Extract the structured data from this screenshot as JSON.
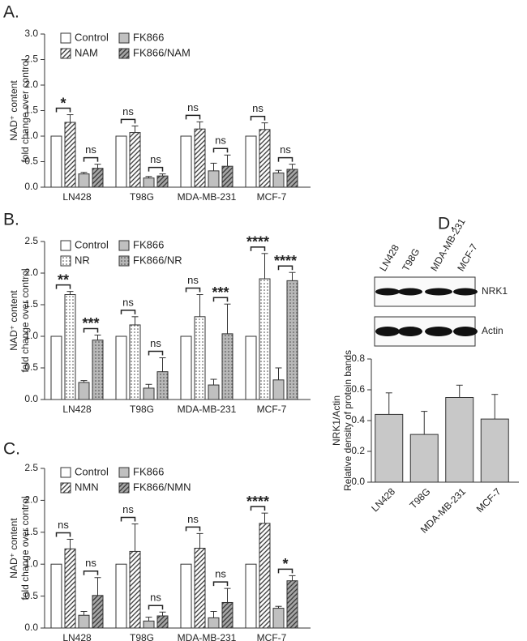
{
  "chart_data": [
    {
      "type": "bar",
      "panel": "A.",
      "ylabel": [
        "NAD⁺ content",
        "fold change  over control"
      ],
      "categories": [
        "LN428",
        "T98G",
        "MDA-MB-231",
        "MCF-7"
      ],
      "series": [
        {
          "name": "Control",
          "color": "#ffffff",
          "pattern": "none",
          "values": [
            1.0,
            1.0,
            1.0,
            1.0
          ],
          "errors": [
            null,
            null,
            null,
            null
          ]
        },
        {
          "name": "NAM",
          "color": "#ffffff",
          "pattern": "hatch",
          "values": [
            1.27,
            1.07,
            1.14,
            1.13
          ],
          "errors": [
            0.15,
            0.13,
            0.14,
            0.13
          ]
        },
        {
          "name": "FK866",
          "color": "#c0c0c0",
          "pattern": "none",
          "values": [
            0.26,
            0.18,
            0.32,
            0.28
          ],
          "errors": [
            0.03,
            0.03,
            0.15,
            0.05
          ]
        },
        {
          "name": "FK866/NAM",
          "color": "#a8a8a8",
          "pattern": "hatch",
          "values": [
            0.37,
            0.22,
            0.41,
            0.35
          ],
          "errors": [
            0.08,
            0.04,
            0.22,
            0.1
          ]
        }
      ],
      "significance": [
        [
          "*",
          "ns"
        ],
        [
          "ns",
          "ns"
        ],
        [
          "ns",
          "ns"
        ],
        [
          "ns",
          "ns"
        ]
      ],
      "ylim": [
        0,
        3
      ],
      "yticks": [
        {
          "value": 0,
          "label": "0.0"
        },
        0.5,
        {
          "value": 1,
          "label": "1.0"
        },
        1.5,
        {
          "value": 2,
          "label": "2.0"
        },
        2.5,
        {
          "value": 3,
          "label": "3.0"
        }
      ]
    },
    {
      "type": "bar",
      "panel": "B.",
      "ylabel": [
        "NAD⁺ content",
        "fold change  over control"
      ],
      "categories": [
        "LN428",
        "T98G",
        "MDA-MB-231",
        "MCF-7"
      ],
      "series": [
        {
          "name": "Control",
          "color": "#ffffff",
          "pattern": "none",
          "values": [
            1.0,
            1.0,
            1.0,
            1.0
          ],
          "errors": [
            null,
            null,
            null,
            null
          ]
        },
        {
          "name": "NR",
          "color": "#ffffff",
          "pattern": "dots",
          "values": [
            1.66,
            1.18,
            1.31,
            1.91
          ],
          "errors": [
            0.05,
            0.13,
            0.35,
            0.4
          ]
        },
        {
          "name": "FK866",
          "color": "#c0c0c0",
          "pattern": "none",
          "values": [
            0.27,
            0.18,
            0.23,
            0.31
          ],
          "errors": [
            0.03,
            0.06,
            0.09,
            0.19
          ]
        },
        {
          "name": "FK866/NR",
          "color": "#b8b8b8",
          "pattern": "dots",
          "values": [
            0.94,
            0.44,
            1.04,
            1.88
          ],
          "errors": [
            0.08,
            0.22,
            0.47,
            0.13
          ]
        }
      ],
      "significance": [
        [
          "**",
          "***"
        ],
        [
          "ns",
          "ns"
        ],
        [
          "ns",
          "***"
        ],
        [
          "****",
          "****"
        ]
      ],
      "ylim": [
        0,
        2.5
      ],
      "yticks": [
        {
          "value": 0,
          "label": "0.0"
        },
        0.5,
        {
          "value": 1,
          "label": "1.0"
        },
        1.5,
        {
          "value": 2,
          "label": "2.0"
        },
        2.5
      ]
    },
    {
      "type": "bar",
      "panel": "C.",
      "ylabel": [
        "NAD⁺ content",
        "fold change  over control"
      ],
      "categories": [
        "LN428",
        "T98G",
        "MDA-MB-231",
        "MCF-7"
      ],
      "series": [
        {
          "name": "Control",
          "color": "#ffffff",
          "pattern": "none",
          "values": [
            1.0,
            1.0,
            1.0,
            1.0
          ],
          "errors": [
            null,
            null,
            null,
            null
          ]
        },
        {
          "name": "NMN",
          "color": "#ffffff",
          "pattern": "hatch",
          "values": [
            1.24,
            1.2,
            1.25,
            1.64
          ],
          "errors": [
            0.15,
            0.43,
            0.23,
            0.16
          ]
        },
        {
          "name": "FK866",
          "color": "#c0c0c0",
          "pattern": "none",
          "values": [
            0.2,
            0.11,
            0.16,
            0.31
          ],
          "errors": [
            0.06,
            0.06,
            0.1,
            0.03
          ]
        },
        {
          "name": "FK866/NMN",
          "color": "#a8a8a8",
          "pattern": "hatch",
          "values": [
            0.51,
            0.19,
            0.4,
            0.74
          ],
          "errors": [
            0.28,
            0.06,
            0.22,
            0.08
          ]
        }
      ],
      "significance": [
        [
          "ns",
          "ns"
        ],
        [
          "ns",
          "ns"
        ],
        [
          "ns",
          "ns"
        ],
        [
          "****",
          "*"
        ]
      ],
      "ylim": [
        0,
        2.5
      ],
      "yticks": [
        {
          "value": 0,
          "label": "0.0"
        },
        0.5,
        {
          "value": 1,
          "label": "1.0"
        },
        1.5,
        {
          "value": 2,
          "label": "2.0"
        },
        2.5
      ]
    },
    {
      "type": "bar",
      "panel": "D.",
      "ylabel": [
        "NRK1/Actin",
        "Relative density of  protein bands"
      ],
      "blot": {
        "lanes": [
          "LN428",
          "T98G",
          "MDA-MB-231",
          "MCF-7"
        ],
        "bands": [
          "NRK1",
          "Actin"
        ]
      },
      "categories": [
        "LN428",
        "T98G",
        "MDA-MB-231",
        "MCF-7"
      ],
      "values": [
        0.44,
        0.31,
        0.55,
        0.41
      ],
      "errors": [
        0.14,
        0.15,
        0.08,
        0.16
      ],
      "color": "#c8c8c8",
      "ylim": [
        0,
        0.8
      ],
      "yticks": [
        {
          "value": 0,
          "label": "0.0"
        },
        0.2,
        0.4,
        0.6,
        0.8
      ]
    }
  ]
}
